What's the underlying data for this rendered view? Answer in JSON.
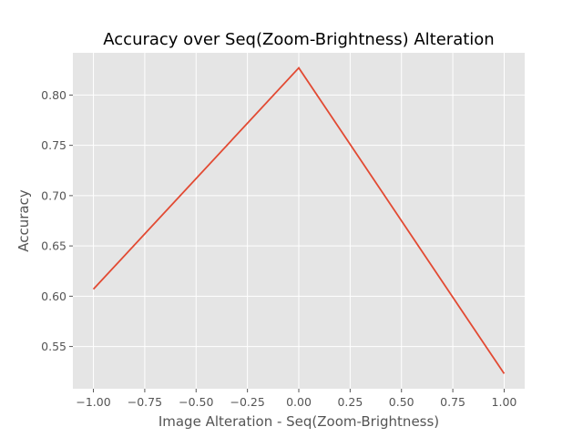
{
  "chart_data": {
    "type": "line",
    "title": "Accuracy over Seq(Zoom-Brightness) Alteration",
    "xlabel": "Image Alteration - Seq(Zoom-Brightness)",
    "ylabel": "Accuracy",
    "xlim": [
      -1.1,
      1.1
    ],
    "ylim": [
      0.508,
      0.842
    ],
    "xticks": [
      -1.0,
      -0.75,
      -0.5,
      -0.25,
      0.0,
      0.25,
      0.5,
      0.75,
      1.0
    ],
    "xtick_labels": [
      "−1.00",
      "−0.75",
      "−0.50",
      "−0.25",
      "0.00",
      "0.25",
      "0.50",
      "0.75",
      "1.00"
    ],
    "yticks": [
      0.55,
      0.6,
      0.65,
      0.7,
      0.75,
      0.8
    ],
    "ytick_labels": [
      "0.55",
      "0.60",
      "0.65",
      "0.70",
      "0.75",
      "0.80"
    ],
    "grid": true,
    "series": [
      {
        "color": "#E24A33",
        "x": [
          -1.0,
          0.0,
          1.0
        ],
        "y": [
          0.607,
          0.827,
          0.523
        ]
      }
    ],
    "colors": {
      "plot_bg": "#E5E5E5",
      "grid": "#FFFFFF",
      "text": "#555555"
    }
  }
}
